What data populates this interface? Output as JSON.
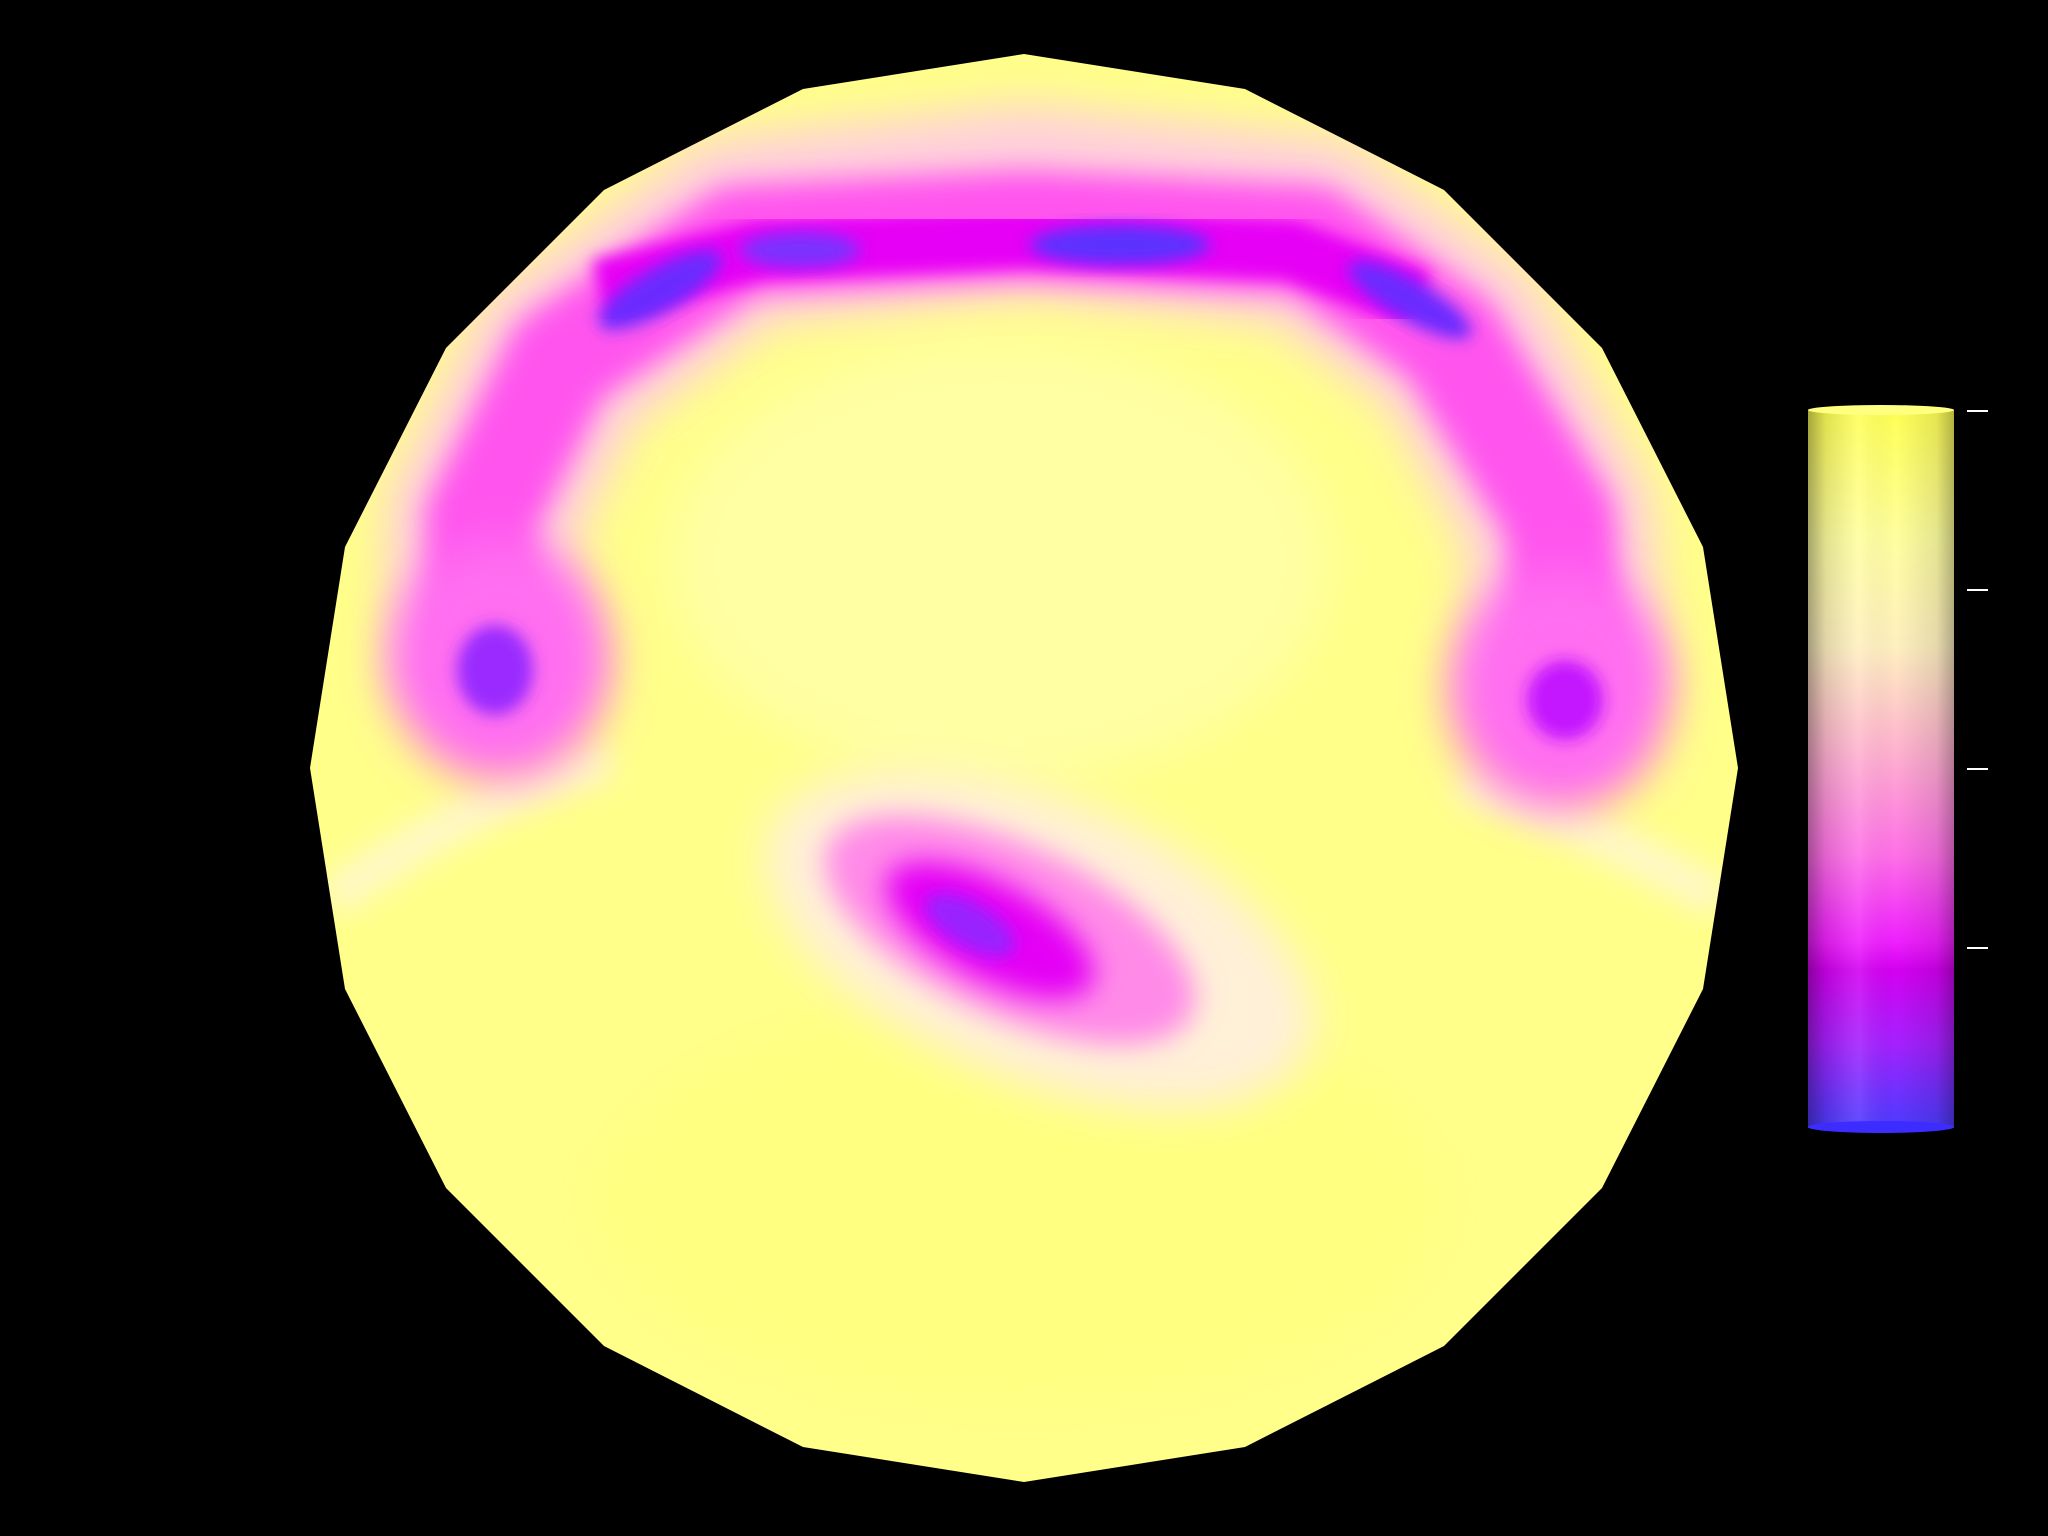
{
  "scene": {
    "background_color": "#000000",
    "field_base_color": "#ffff8a",
    "colormap": {
      "name": "yellow-magenta-blue",
      "stops": [
        {
          "t": 0.0,
          "color": "#4a3cff"
        },
        {
          "t": 0.12,
          "color": "#9b1fff"
        },
        {
          "t": 0.2,
          "color": "#d800f5"
        },
        {
          "t": 0.35,
          "color": "#ff5cf0"
        },
        {
          "t": 0.5,
          "color": "#ffaad8"
        },
        {
          "t": 0.65,
          "color": "#fff0bf"
        },
        {
          "t": 0.8,
          "color": "#ffffa8"
        },
        {
          "t": 1.0,
          "color": "#ffff55"
        }
      ],
      "tick_count": 4,
      "tick_color": "#ffffff"
    }
  }
}
